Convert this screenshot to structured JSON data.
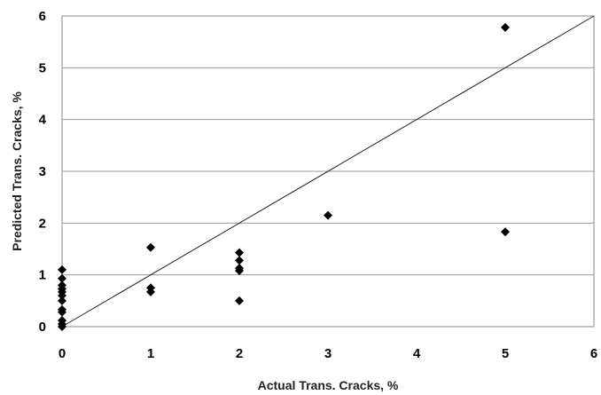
{
  "chart_data": {
    "type": "scatter",
    "title": "",
    "xlabel": "Actual Trans. Cracks, %",
    "ylabel": "Predicted Trans. Cracks, %",
    "xlim": [
      0,
      6
    ],
    "ylim": [
      0,
      6
    ],
    "x_ticks": [
      "0",
      "1",
      "2",
      "3",
      "4",
      "5",
      "6"
    ],
    "y_ticks": [
      "0",
      "1",
      "2",
      "3",
      "4",
      "5",
      "6"
    ],
    "grid": "horizontal",
    "legend": "none",
    "marker": "diamond",
    "marker_color": "#000000",
    "reference_line": {
      "x": [
        0,
        6
      ],
      "y": [
        0,
        6
      ]
    },
    "points": [
      {
        "x": 0,
        "y": 0.0
      },
      {
        "x": 0,
        "y": 0.05
      },
      {
        "x": 0,
        "y": 0.12
      },
      {
        "x": 0,
        "y": 0.28
      },
      {
        "x": 0,
        "y": 0.33
      },
      {
        "x": 0,
        "y": 0.5
      },
      {
        "x": 0,
        "y": 0.6
      },
      {
        "x": 0,
        "y": 0.67
      },
      {
        "x": 0,
        "y": 0.73
      },
      {
        "x": 0,
        "y": 0.8
      },
      {
        "x": 0,
        "y": 0.93
      },
      {
        "x": 0,
        "y": 1.1
      },
      {
        "x": 1,
        "y": 0.67
      },
      {
        "x": 1,
        "y": 0.75
      },
      {
        "x": 1,
        "y": 1.53
      },
      {
        "x": 2,
        "y": 0.5
      },
      {
        "x": 2,
        "y": 1.08
      },
      {
        "x": 2,
        "y": 1.13
      },
      {
        "x": 2,
        "y": 1.28
      },
      {
        "x": 2,
        "y": 1.43
      },
      {
        "x": 3,
        "y": 2.15
      },
      {
        "x": 5,
        "y": 1.83
      },
      {
        "x": 5,
        "y": 5.78
      }
    ]
  }
}
